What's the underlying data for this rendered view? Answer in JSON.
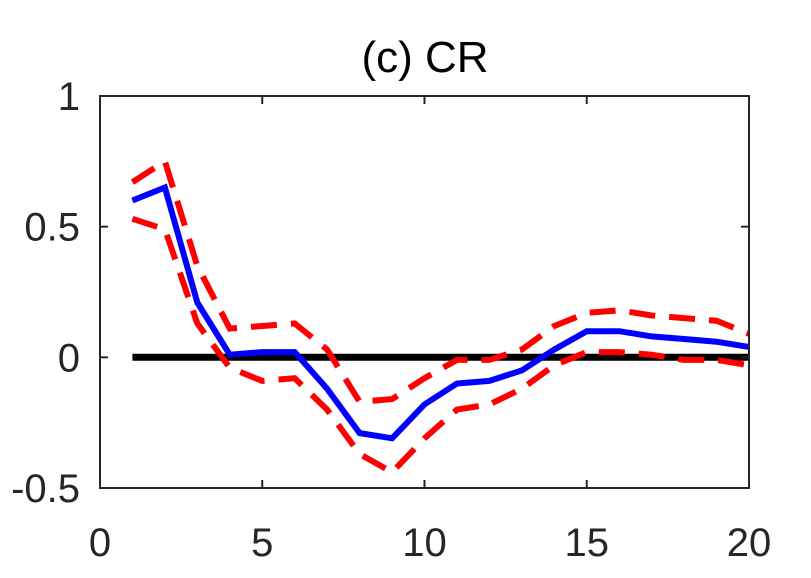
{
  "chart_data": {
    "type": "line",
    "title": "(c) CR",
    "xlabel": "",
    "ylabel": "",
    "xlim": [
      0,
      20
    ],
    "ylim": [
      -0.5,
      1
    ],
    "xticks": [
      0,
      5,
      10,
      15,
      20
    ],
    "yticks": [
      -0.5,
      0,
      0.5,
      1
    ],
    "xtick_labels": [
      "0",
      "5",
      "10",
      "15",
      "20"
    ],
    "ytick_labels": [
      "-0.5",
      "0",
      "0.5",
      "1"
    ],
    "grid": false,
    "x": [
      1,
      2,
      3,
      4,
      5,
      6,
      7,
      8,
      9,
      10,
      11,
      12,
      13,
      14,
      15,
      16,
      17,
      18,
      19,
      20
    ],
    "series": [
      {
        "role": "estimate",
        "color": "#0000ff",
        "style": "solid",
        "values": [
          0.6,
          0.65,
          0.21,
          0.01,
          0.02,
          0.02,
          -0.12,
          -0.29,
          -0.31,
          -0.18,
          -0.1,
          -0.09,
          -0.05,
          0.03,
          0.1,
          0.1,
          0.08,
          0.07,
          0.06,
          0.04
        ]
      },
      {
        "role": "upper-band",
        "color": "#ff0000",
        "style": "dashed",
        "values": [
          0.67,
          0.75,
          0.35,
          0.11,
          0.12,
          0.13,
          0.03,
          -0.17,
          -0.16,
          -0.08,
          -0.01,
          -0.01,
          0.03,
          0.12,
          0.17,
          0.18,
          0.16,
          0.15,
          0.14,
          0.09
        ]
      },
      {
        "role": "lower-band",
        "color": "#ff0000",
        "style": "dashed",
        "values": [
          0.53,
          0.49,
          0.13,
          -0.04,
          -0.09,
          -0.08,
          -0.2,
          -0.37,
          -0.44,
          -0.31,
          -0.2,
          -0.18,
          -0.12,
          -0.03,
          0.02,
          0.02,
          0.01,
          -0.01,
          -0.01,
          -0.03
        ]
      },
      {
        "role": "zero-line",
        "color": "#000000",
        "style": "solid",
        "values": [
          0,
          0,
          0,
          0,
          0,
          0,
          0,
          0,
          0,
          0,
          0,
          0,
          0,
          0,
          0,
          0,
          0,
          0,
          0,
          0
        ]
      }
    ]
  }
}
